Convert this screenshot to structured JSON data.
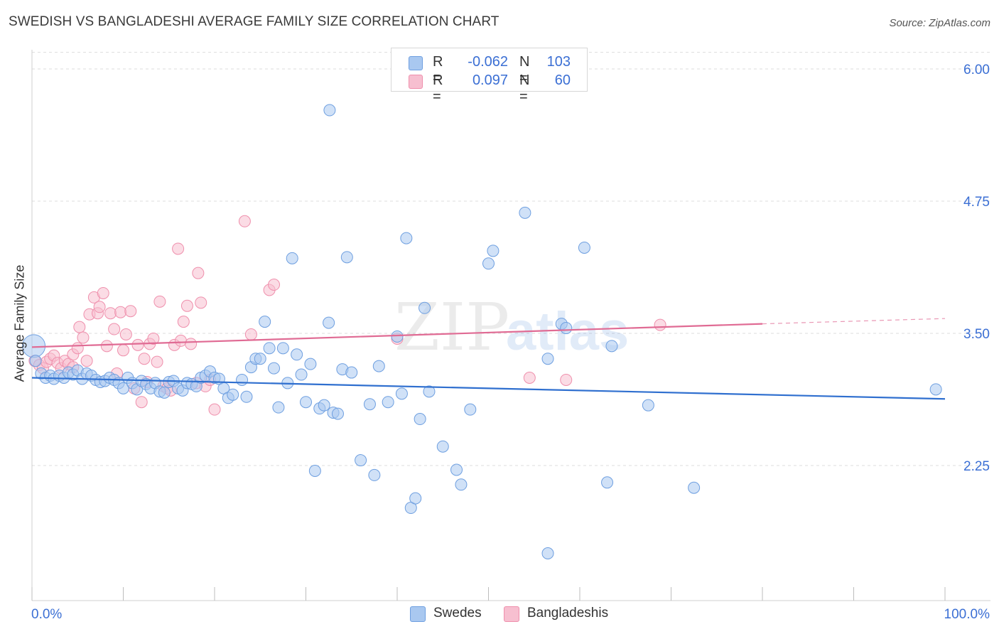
{
  "title": "SWEDISH VS BANGLADESHI AVERAGE FAMILY SIZE CORRELATION CHART",
  "source": "Source: ZipAtlas.com",
  "watermark": {
    "zip": "ZIP",
    "atlas": "atlas"
  },
  "legend_top": {
    "rows": [
      {
        "r_label": "R =",
        "r_value": "-0.062",
        "n_label": "N =",
        "n_value": "103"
      },
      {
        "r_label": "R =",
        "r_value": "0.097",
        "n_label": "N =",
        "n_value": "60"
      }
    ]
  },
  "legend_bottom": {
    "items": [
      "Swedes",
      "Bangladeshis"
    ]
  },
  "colors": {
    "swedes_fill": "#a9c8f0",
    "swedes_stroke": "#6e9fe0",
    "swedes_line": "#2f6fcf",
    "bang_fill": "#f7bfd0",
    "bang_stroke": "#ef8fac",
    "bang_line": "#e06b94",
    "grid": "#dddddd",
    "tick_label": "#3b6fd4"
  },
  "chart_data": {
    "type": "scatter",
    "title": "SWEDISH VS BANGLADESHI AVERAGE FAMILY SIZE CORRELATION CHART",
    "xlabel": "",
    "ylabel": "Average Family Size",
    "xlim": [
      0,
      100
    ],
    "ylim": [
      1.0,
      6.15
    ],
    "x_tick_labels": [
      "0.0%",
      "100.0%"
    ],
    "y_ticks": [
      2.25,
      3.5,
      4.75,
      6.0
    ],
    "y_tick_labels": [
      "2.25",
      "3.50",
      "4.75",
      "6.00"
    ],
    "grid": true,
    "legend_placement": "top-center",
    "series": [
      {
        "name": "Swedes",
        "trend": {
          "x": [
            0,
            100
          ],
          "y": [
            3.08,
            2.88
          ]
        },
        "points": [
          [
            0.2,
            3.38
          ],
          [
            0.4,
            3.24
          ],
          [
            1.0,
            3.12
          ],
          [
            1.5,
            3.08
          ],
          [
            2.0,
            3.1
          ],
          [
            2.4,
            3.07
          ],
          [
            3.0,
            3.1
          ],
          [
            3.5,
            3.08
          ],
          [
            4.0,
            3.13
          ],
          [
            4.5,
            3.11
          ],
          [
            5.0,
            3.15
          ],
          [
            5.5,
            3.07
          ],
          [
            6.0,
            3.12
          ],
          [
            6.5,
            3.1
          ],
          [
            7.0,
            3.06
          ],
          [
            7.5,
            3.04
          ],
          [
            8.0,
            3.05
          ],
          [
            8.5,
            3.08
          ],
          [
            9.0,
            3.06
          ],
          [
            9.5,
            3.03
          ],
          [
            10.0,
            2.98
          ],
          [
            10.5,
            3.08
          ],
          [
            11.0,
            3.03
          ],
          [
            11.5,
            2.97
          ],
          [
            12.0,
            3.05
          ],
          [
            12.5,
            3.02
          ],
          [
            13.0,
            2.98
          ],
          [
            13.5,
            3.03
          ],
          [
            14.0,
            2.95
          ],
          [
            14.5,
            2.94
          ],
          [
            15.0,
            3.04
          ],
          [
            15.5,
            3.05
          ],
          [
            16.0,
            2.98
          ],
          [
            16.5,
            2.96
          ],
          [
            17.0,
            3.03
          ],
          [
            17.5,
            3.02
          ],
          [
            18.0,
            3.0
          ],
          [
            18.5,
            3.08
          ],
          [
            19.0,
            3.1
          ],
          [
            19.5,
            3.14
          ],
          [
            20.0,
            3.08
          ],
          [
            20.5,
            3.07
          ],
          [
            21.0,
            2.98
          ],
          [
            21.5,
            2.89
          ],
          [
            22.0,
            2.92
          ],
          [
            23.0,
            3.06
          ],
          [
            23.5,
            2.9
          ],
          [
            24.0,
            3.18
          ],
          [
            24.5,
            3.26
          ],
          [
            25.0,
            3.26
          ],
          [
            25.5,
            3.61
          ],
          [
            26.0,
            3.36
          ],
          [
            26.5,
            3.17
          ],
          [
            27.0,
            2.8
          ],
          [
            27.5,
            3.36
          ],
          [
            28.0,
            3.03
          ],
          [
            28.5,
            4.21
          ],
          [
            29.0,
            3.3
          ],
          [
            29.5,
            3.11
          ],
          [
            30.0,
            2.85
          ],
          [
            30.5,
            3.21
          ],
          [
            31.0,
            2.2
          ],
          [
            31.5,
            2.79
          ],
          [
            32.0,
            2.82
          ],
          [
            32.5,
            3.6
          ],
          [
            32.6,
            5.61
          ],
          [
            33.0,
            2.75
          ],
          [
            33.5,
            2.74
          ],
          [
            34.0,
            3.16
          ],
          [
            34.5,
            4.22
          ],
          [
            35.0,
            3.13
          ],
          [
            36.0,
            2.3
          ],
          [
            37.0,
            2.83
          ],
          [
            37.5,
            2.16
          ],
          [
            38.0,
            3.19
          ],
          [
            39.0,
            2.85
          ],
          [
            40.0,
            3.47
          ],
          [
            40.5,
            2.93
          ],
          [
            41.0,
            4.4
          ],
          [
            41.5,
            1.85
          ],
          [
            42.0,
            1.94
          ],
          [
            42.5,
            2.69
          ],
          [
            43.0,
            3.74
          ],
          [
            43.5,
            2.95
          ],
          [
            45.0,
            2.43
          ],
          [
            46.5,
            2.21
          ],
          [
            47.0,
            2.07
          ],
          [
            48.0,
            2.78
          ],
          [
            50.0,
            4.16
          ],
          [
            50.5,
            4.28
          ],
          [
            54.0,
            4.64
          ],
          [
            56.5,
            3.26
          ],
          [
            56.5,
            1.42
          ],
          [
            58.0,
            3.59
          ],
          [
            58.5,
            3.55
          ],
          [
            60.5,
            4.31
          ],
          [
            63.0,
            2.09
          ],
          [
            63.5,
            3.38
          ],
          [
            67.5,
            2.82
          ],
          [
            72.5,
            2.04
          ],
          [
            99.0,
            2.97
          ]
        ]
      },
      {
        "name": "Bangladeshis",
        "trend": {
          "x": [
            0,
            80
          ],
          "y": [
            3.37,
            3.59
          ]
        },
        "trend_dashed": {
          "x": [
            80,
            100
          ],
          "y": [
            3.59,
            3.64
          ]
        },
        "points": [
          [
            0.3,
            3.24
          ],
          [
            0.8,
            3.2
          ],
          [
            1.2,
            3.17
          ],
          [
            1.6,
            3.23
          ],
          [
            2.0,
            3.26
          ],
          [
            2.4,
            3.29
          ],
          [
            2.8,
            3.22
          ],
          [
            3.2,
            3.17
          ],
          [
            3.6,
            3.24
          ],
          [
            4.0,
            3.21
          ],
          [
            4.5,
            3.3
          ],
          [
            4.5,
            3.18
          ],
          [
            5.0,
            3.36
          ],
          [
            5.2,
            3.56
          ],
          [
            5.6,
            3.46
          ],
          [
            6.0,
            3.24
          ],
          [
            6.3,
            3.68
          ],
          [
            6.8,
            3.84
          ],
          [
            7.2,
            3.69
          ],
          [
            7.4,
            3.75
          ],
          [
            7.8,
            3.88
          ],
          [
            8.2,
            3.38
          ],
          [
            8.6,
            3.69
          ],
          [
            9.0,
            3.54
          ],
          [
            9.3,
            3.12
          ],
          [
            9.7,
            3.7
          ],
          [
            10.0,
            3.34
          ],
          [
            10.3,
            3.49
          ],
          [
            10.8,
            3.71
          ],
          [
            11.2,
            2.98
          ],
          [
            11.6,
            3.39
          ],
          [
            12.0,
            2.85
          ],
          [
            12.3,
            3.26
          ],
          [
            12.6,
            3.04
          ],
          [
            12.9,
            3.4
          ],
          [
            13.3,
            3.45
          ],
          [
            13.7,
            3.23
          ],
          [
            14.0,
            3.8
          ],
          [
            14.4,
            3.0
          ],
          [
            14.8,
            2.98
          ],
          [
            15.2,
            2.96
          ],
          [
            15.6,
            3.39
          ],
          [
            16.0,
            4.3
          ],
          [
            16.3,
            3.43
          ],
          [
            16.6,
            3.61
          ],
          [
            17.0,
            3.76
          ],
          [
            17.4,
            3.4
          ],
          [
            18.0,
            3.03
          ],
          [
            18.2,
            4.07
          ],
          [
            18.5,
            3.79
          ],
          [
            19.0,
            3.0
          ],
          [
            19.5,
            3.06
          ],
          [
            20.0,
            2.78
          ],
          [
            23.3,
            4.56
          ],
          [
            24.0,
            3.49
          ],
          [
            26.0,
            3.91
          ],
          [
            26.5,
            3.96
          ],
          [
            40.0,
            3.45
          ],
          [
            54.5,
            3.08
          ],
          [
            58.5,
            3.06
          ],
          [
            68.8,
            3.58
          ]
        ]
      }
    ]
  }
}
